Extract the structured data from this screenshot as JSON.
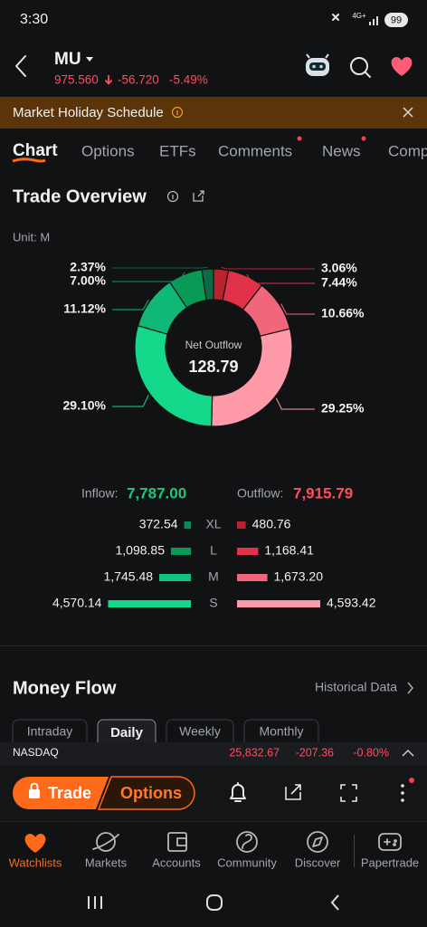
{
  "status_bar": {
    "time": "3:30",
    "network": "4G+",
    "battery": "99"
  },
  "header": {
    "ticker": "MU",
    "price": "975.560",
    "change": "-56.720",
    "change_pct": "-5.49%"
  },
  "banner": {
    "text": "Market Holiday Schedule"
  },
  "tabs": [
    "Chart",
    "Options",
    "ETFs",
    "Comments",
    "News",
    "Comp"
  ],
  "trade_overview": {
    "title": "Trade Overview",
    "unit": "Unit: M",
    "center_label": "Net Outflow",
    "center_value": "128.79",
    "slices": [
      {
        "value": 3.06,
        "label": "3.06%",
        "color": "#b8232f"
      },
      {
        "value": 7.44,
        "label": "7.44%",
        "color": "#e0334a"
      },
      {
        "value": 10.66,
        "label": "10.66%",
        "color": "#f2667c"
      },
      {
        "value": 29.25,
        "label": "29.25%",
        "color": "#ff9aa8"
      },
      {
        "value": 29.1,
        "label": "29.10%",
        "color": "#14d98b"
      },
      {
        "value": 11.12,
        "label": "11.12%",
        "color": "#10b878"
      },
      {
        "value": 7.0,
        "label": "7.00%",
        "color": "#0a9a58"
      },
      {
        "value": 2.37,
        "label": "2.37%",
        "color": "#0b6b45"
      }
    ],
    "inflow_label": "Inflow:",
    "inflow_total": "7,787.00",
    "outflow_label": "Outflow:",
    "outflow_total": "7,915.79",
    "inflow_colors": [
      "#0b8a55",
      "#0a9a58",
      "#10c47f",
      "#14d98b"
    ],
    "outflow_colors": [
      "#b8232f",
      "#e0334a",
      "#f2667c",
      "#ff9aa8"
    ],
    "rows": [
      {
        "size": "XL",
        "inflow": 372.54,
        "outflow": 480.76
      },
      {
        "size": "L",
        "inflow": {
          "value": 1098.85,
          "label": "1,098.85"
        },
        "outflow": {
          "value": 1168.41,
          "label": "1,168.41"
        }
      },
      {
        "size": "M",
        "inflow": {
          "value": 1745.48,
          "label": "1,745.48"
        },
        "outflow": {
          "value": 1673.2,
          "label": "1,673.20"
        }
      },
      {
        "size": "S",
        "inflow": {
          "value": 4570.14,
          "label": "4,570.14"
        },
        "outflow": {
          "value": 4593.42,
          "label": "4,593.42"
        }
      }
    ]
  },
  "money_flow": {
    "title": "Money Flow",
    "link": "Historical Data",
    "periods": [
      "Intraday",
      "Daily",
      "Weekly",
      "Monthly"
    ]
  },
  "ticker_bar": {
    "index": "NASDAQ",
    "value": "25,832.67",
    "change": "-207.36",
    "change_pct": "-0.80%"
  },
  "action_bar": {
    "trade": "Trade",
    "options": "Options"
  },
  "nav": [
    "Watchlists",
    "Markets",
    "Accounts",
    "Community",
    "Discover",
    "Papertrade"
  ]
}
